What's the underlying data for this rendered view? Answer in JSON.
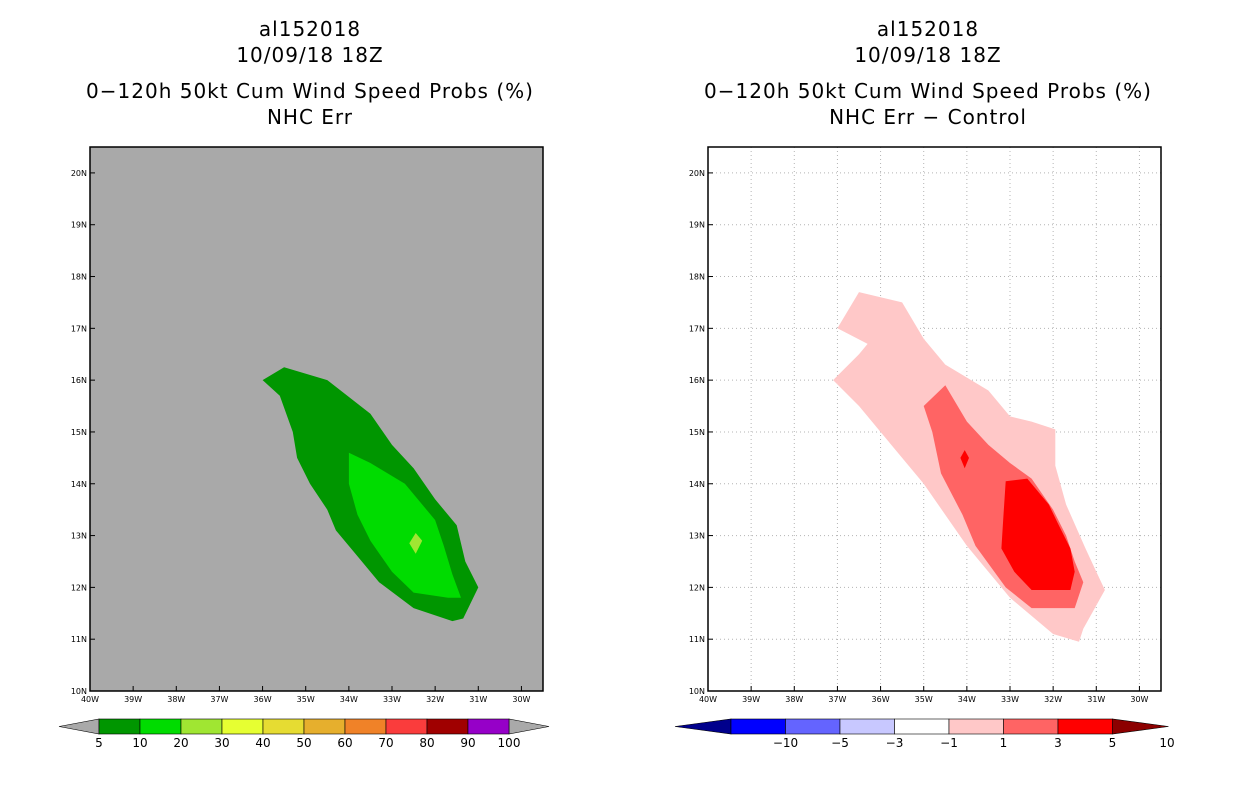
{
  "left": {
    "line1": "al152018",
    "line2": "10/09/18 18Z",
    "line3": "0−120h 50kt Cum Wind Speed Probs (%)",
    "line4": "NHC Err"
  },
  "right": {
    "line1": "al152018",
    "line2": "10/09/18 18Z",
    "line3": "0−120h 50kt Cum Wind Speed Probs (%)",
    "line4": "NHC Err − Control"
  },
  "chart_data": [
    {
      "type": "contour-map",
      "storm": "al152018",
      "valid": "10/09/18 18Z",
      "title": "0−120h 50kt Cum Wind Speed Probs (%)",
      "subtitle": "NHC Err",
      "xlim": [
        -40,
        -29.5
      ],
      "ylim": [
        10,
        20.5
      ],
      "xticks": [
        -40,
        -39,
        -38,
        -37,
        -36,
        -35,
        -34,
        -33,
        -32,
        -31,
        -30
      ],
      "xtick_labels": [
        "40W",
        "39W",
        "38W",
        "37W",
        "36W",
        "35W",
        "34W",
        "33W",
        "32W",
        "31W",
        "30W"
      ],
      "yticks": [
        10,
        11,
        12,
        13,
        14,
        15,
        16,
        17,
        18,
        19,
        20
      ],
      "ytick_labels": [
        "10N",
        "11N",
        "12N",
        "13N",
        "14N",
        "15N",
        "16N",
        "17N",
        "18N",
        "19N",
        "20N"
      ],
      "background": "#a9a9a9",
      "grid": false,
      "colorbar": {
        "labels": [
          "5",
          "10",
          "20",
          "30",
          "40",
          "50",
          "60",
          "70",
          "80",
          "90",
          "100"
        ],
        "colors": [
          "#009600",
          "#00dc00",
          "#a0e632",
          "#e6ff32",
          "#e6dc32",
          "#e6af2d",
          "#f08228",
          "#fa3c3c",
          "#a00000",
          "#9600c8"
        ],
        "end_color": "#a9a9a9"
      },
      "contours": [
        {
          "level": "5-10",
          "color": "#009600",
          "lonlat": [
            [
              -36,
              16
            ],
            [
              -35.5,
              16.25
            ],
            [
              -34.5,
              16
            ],
            [
              -33.5,
              15.35
            ],
            [
              -33,
              14.75
            ],
            [
              -32.5,
              14.3
            ],
            [
              -32,
              13.7
            ],
            [
              -31.5,
              13.2
            ],
            [
              -31.3,
              12.5
            ],
            [
              -31,
              12
            ],
            [
              -31.35,
              11.4
            ],
            [
              -31.6,
              11.35
            ],
            [
              -32.5,
              11.6
            ],
            [
              -33.3,
              12.1
            ],
            [
              -33.8,
              12.6
            ],
            [
              -34.3,
              13.1
            ],
            [
              -34.5,
              13.5
            ],
            [
              -34.9,
              14
            ],
            [
              -35.2,
              14.5
            ],
            [
              -35.3,
              15
            ],
            [
              -35.6,
              15.7
            ],
            [
              -36,
              16
            ]
          ]
        },
        {
          "level": "10-20",
          "color": "#00dc00",
          "lonlat": [
            [
              -34,
              14.6
            ],
            [
              -33.5,
              14.4
            ],
            [
              -32.7,
              14
            ],
            [
              -32,
              13.3
            ],
            [
              -31.8,
              12.8
            ],
            [
              -31.6,
              12.25
            ],
            [
              -31.4,
              11.8
            ],
            [
              -31.7,
              11.8
            ],
            [
              -32.5,
              11.9
            ],
            [
              -33,
              12.3
            ],
            [
              -33.5,
              12.9
            ],
            [
              -33.8,
              13.4
            ],
            [
              -34,
              14
            ],
            [
              -34,
              14.6
            ]
          ]
        },
        {
          "level": "20-30",
          "color": "#a0e632",
          "lonlat": [
            [
              -32.45,
              13.05
            ],
            [
              -32.3,
              12.9
            ],
            [
              -32.45,
              12.65
            ],
            [
              -32.6,
              12.85
            ],
            [
              -32.45,
              13.05
            ]
          ]
        }
      ]
    },
    {
      "type": "contour-map",
      "storm": "al152018",
      "valid": "10/09/18 18Z",
      "title": "0−120h 50kt Cum Wind Speed Probs (%)",
      "subtitle": "NHC Err − Control",
      "xlim": [
        -40,
        -29.5
      ],
      "ylim": [
        10,
        20.5
      ],
      "xticks": [
        -40,
        -39,
        -38,
        -37,
        -36,
        -35,
        -34,
        -33,
        -32,
        -31,
        -30
      ],
      "xtick_labels": [
        "40W",
        "39W",
        "38W",
        "37W",
        "36W",
        "35W",
        "34W",
        "33W",
        "32W",
        "31W",
        "30W"
      ],
      "yticks": [
        10,
        11,
        12,
        13,
        14,
        15,
        16,
        17,
        18,
        19,
        20
      ],
      "ytick_labels": [
        "10N",
        "11N",
        "12N",
        "13N",
        "14N",
        "15N",
        "16N",
        "17N",
        "18N",
        "19N",
        "20N"
      ],
      "background": "#ffffff",
      "grid": true,
      "colorbar": {
        "labels": [
          "−10",
          "−5",
          "−3",
          "−1",
          "1",
          "3",
          "5",
          "10"
        ],
        "colors": [
          "#0000ff",
          "#6464ff",
          "#c8c8ff",
          "#ffffff",
          "#ffc8c8",
          "#ff6464",
          "#ff0000"
        ],
        "end_low": "#00008c",
        "end_high": "#8c0000"
      },
      "contours": [
        {
          "level": "1-3",
          "color": "#ffc8c8",
          "lonlat": [
            [
              -37,
              17
            ],
            [
              -36.5,
              17.7
            ],
            [
              -35.5,
              17.5
            ],
            [
              -35,
              16.8
            ],
            [
              -34.5,
              16.3
            ],
            [
              -33.5,
              15.8
            ],
            [
              -33,
              15.3
            ],
            [
              -32.5,
              15.2
            ],
            [
              -31.95,
              15.05
            ],
            [
              -31.95,
              14.35
            ],
            [
              -31.7,
              13.6
            ],
            [
              -31.25,
              12.75
            ],
            [
              -31,
              12.3
            ],
            [
              -30.8,
              11.95
            ],
            [
              -31.3,
              11.2
            ],
            [
              -31.4,
              10.95
            ],
            [
              -32,
              11.1
            ],
            [
              -33,
              11.8
            ],
            [
              -34,
              12.8
            ],
            [
              -35,
              14
            ],
            [
              -36,
              15
            ],
            [
              -36.5,
              15.5
            ],
            [
              -37.1,
              16
            ],
            [
              -36.5,
              16.5
            ],
            [
              -36.3,
              16.7
            ],
            [
              -37,
              17
            ]
          ]
        },
        {
          "level": "3-5",
          "color": "#ff6464",
          "lonlat": [
            [
              -35,
              15.5
            ],
            [
              -34.5,
              15.9
            ],
            [
              -34,
              15.2
            ],
            [
              -33.5,
              14.75
            ],
            [
              -33,
              14.4
            ],
            [
              -32.5,
              14.1
            ],
            [
              -32,
              13.5
            ],
            [
              -31.7,
              13
            ],
            [
              -31.5,
              12.5
            ],
            [
              -31.3,
              12.1
            ],
            [
              -31.5,
              11.6
            ],
            [
              -32.5,
              11.6
            ],
            [
              -33.1,
              12
            ],
            [
              -33.8,
              12.8
            ],
            [
              -34.1,
              13.4
            ],
            [
              -34.6,
              14.2
            ],
            [
              -34.8,
              15
            ],
            [
              -35,
              15.5
            ]
          ]
        },
        {
          "level": "5-10",
          "color": "#ff0000",
          "lonlat": [
            [
              -33.1,
              14.05
            ],
            [
              -32.6,
              14.1
            ],
            [
              -32.1,
              13.6
            ],
            [
              -31.9,
              13.25
            ],
            [
              -31.6,
              12.75
            ],
            [
              -31.5,
              12.3
            ],
            [
              -31.6,
              11.95
            ],
            [
              -32.5,
              11.95
            ],
            [
              -32.9,
              12.3
            ],
            [
              -33.2,
              12.75
            ],
            [
              -33.15,
              13.4
            ],
            [
              -33.1,
              14.05
            ]
          ]
        },
        {
          "level": "5-10",
          "color": "#ff0000",
          "lonlat": [
            [
              -34.05,
              14.65
            ],
            [
              -33.95,
              14.5
            ],
            [
              -34.05,
              14.3
            ],
            [
              -34.15,
              14.5
            ],
            [
              -34.05,
              14.65
            ]
          ]
        }
      ]
    }
  ]
}
